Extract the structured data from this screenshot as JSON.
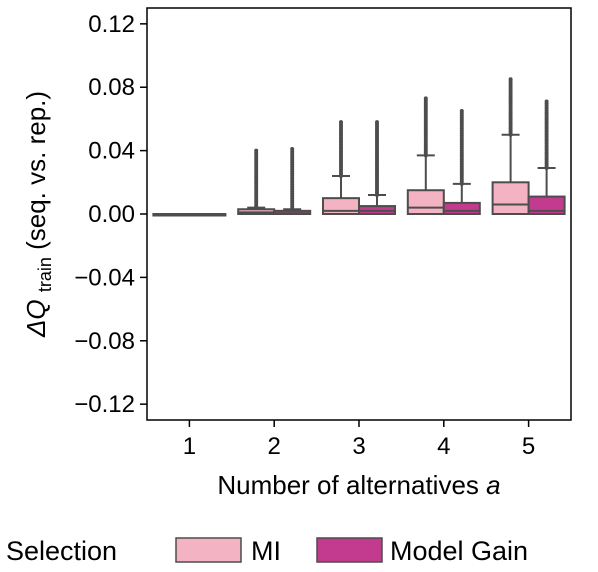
{
  "chart_data": {
    "type": "box",
    "xlabel": "Number of alternatives",
    "xlabel_var": "a",
    "ylabel_prefix": "ΔQ",
    "ylabel_sub": "train",
    "ylabel_suffix": " (seq. vs. rep.)",
    "categories": [
      "1",
      "2",
      "3",
      "4",
      "5"
    ],
    "ylim": [
      -0.13,
      0.13
    ],
    "yticks": [
      0.12,
      0.08,
      0.04,
      0.0,
      -0.04,
      -0.08,
      -0.12
    ],
    "ytick_labels": [
      "0.12",
      "0.08",
      "0.04",
      "0.00",
      "−0.04",
      "−0.08",
      "−0.12"
    ],
    "grid": false,
    "legend": {
      "title": "Selection",
      "placement": "bottom"
    },
    "series": [
      {
        "name": "MI",
        "color": "#f4b3c2",
        "boxes": [
          {
            "category": "1",
            "q1": 0.0,
            "median": 0.0,
            "q3": 0.0,
            "whisker_low": 0.0,
            "whisker_high": 0.0,
            "outlier_max": 0.0
          },
          {
            "category": "2",
            "q1": 0.0,
            "median": 0.001,
            "q3": 0.003,
            "whisker_low": 0.0,
            "whisker_high": 0.004,
            "outlier_max": 0.04
          },
          {
            "category": "3",
            "q1": 0.0,
            "median": 0.002,
            "q3": 0.01,
            "whisker_low": 0.0,
            "whisker_high": 0.024,
            "outlier_max": 0.058
          },
          {
            "category": "4",
            "q1": 0.0,
            "median": 0.004,
            "q3": 0.015,
            "whisker_low": 0.0,
            "whisker_high": 0.037,
            "outlier_max": 0.073
          },
          {
            "category": "5",
            "q1": 0.0,
            "median": 0.006,
            "q3": 0.02,
            "whisker_low": 0.0,
            "whisker_high": 0.05,
            "outlier_max": 0.085
          }
        ]
      },
      {
        "name": "Model Gain",
        "color": "#c23b8f",
        "boxes": [
          {
            "category": "1",
            "q1": 0.0,
            "median": 0.0,
            "q3": 0.0,
            "whisker_low": 0.0,
            "whisker_high": 0.0,
            "outlier_max": 0.0
          },
          {
            "category": "2",
            "q1": 0.0,
            "median": 0.0005,
            "q3": 0.002,
            "whisker_low": 0.0,
            "whisker_high": 0.003,
            "outlier_max": 0.041
          },
          {
            "category": "3",
            "q1": 0.0,
            "median": 0.002,
            "q3": 0.005,
            "whisker_low": 0.0,
            "whisker_high": 0.012,
            "outlier_max": 0.058
          },
          {
            "category": "4",
            "q1": 0.0,
            "median": 0.002,
            "q3": 0.007,
            "whisker_low": 0.0,
            "whisker_high": 0.019,
            "outlier_max": 0.065
          },
          {
            "category": "5",
            "q1": 0.0,
            "median": 0.002,
            "q3": 0.011,
            "whisker_low": 0.0,
            "whisker_high": 0.029,
            "outlier_max": 0.071
          }
        ]
      }
    ]
  }
}
